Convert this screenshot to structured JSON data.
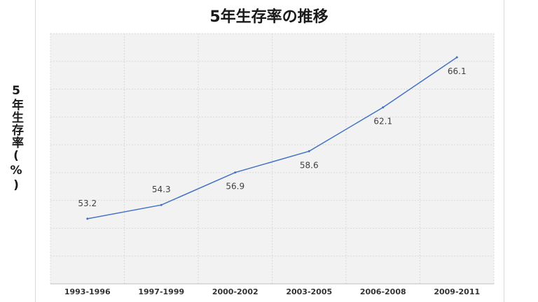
{
  "chart_data": {
    "type": "line",
    "title": "5年生存率の推移",
    "xlabel": "",
    "ylabel": "5年生存率(%)",
    "categories": [
      "1993-1996",
      "1997-1999",
      "2000-2002",
      "2003-2005",
      "2006-2008",
      "2009-2011"
    ],
    "series": [
      {
        "values": [
          53.2,
          54.3,
          56.9,
          58.6,
          62.1,
          66.1
        ]
      }
    ],
    "ylim": [
      48.0,
      68.0
    ],
    "grid": true,
    "legend": "none",
    "colors": {
      "line": "#4472c4",
      "plot_bg": "#f2f2f2",
      "grid": "#d9d9d9"
    }
  }
}
